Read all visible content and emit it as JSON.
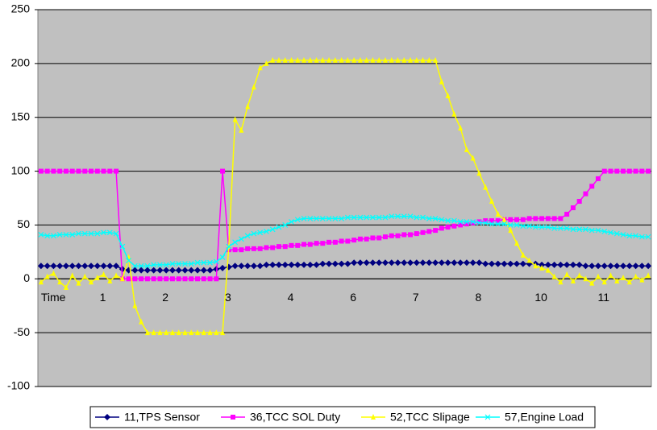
{
  "chart_data": {
    "type": "line",
    "categories": [
      "Time",
      null,
      null,
      null,
      null,
      null,
      null,
      null,
      null,
      null,
      "1",
      null,
      null,
      null,
      null,
      null,
      null,
      null,
      null,
      null,
      "2",
      null,
      null,
      null,
      null,
      null,
      null,
      null,
      null,
      null,
      "3",
      null,
      null,
      null,
      null,
      null,
      null,
      null,
      null,
      null,
      "4",
      null,
      null,
      null,
      null,
      null,
      null,
      null,
      null,
      null,
      "6",
      null,
      null,
      null,
      null,
      null,
      null,
      null,
      null,
      null,
      "7",
      null,
      null,
      null,
      null,
      null,
      null,
      null,
      null,
      null,
      "8",
      null,
      null,
      null,
      null,
      null,
      null,
      null,
      null,
      null,
      "10",
      null,
      null,
      null,
      null,
      null,
      null,
      null,
      null,
      null,
      "11",
      null,
      null,
      null,
      null,
      null,
      null,
      null
    ],
    "ylim": [
      -100,
      250
    ],
    "yticks": [
      -100,
      -50,
      0,
      50,
      100,
      150,
      200,
      250
    ],
    "grid": true,
    "legend": "bottom",
    "series": [
      {
        "name": "11,TPS Sensor",
        "color": "#000080",
        "marker": "diamond",
        "values": [
          12,
          12,
          12,
          12,
          12,
          12,
          12,
          12,
          12,
          12,
          12,
          12,
          12,
          9,
          8,
          8,
          8,
          8,
          8,
          8,
          8,
          8,
          8,
          8,
          8,
          8,
          8,
          8,
          9,
          10,
          11,
          12,
          12,
          12,
          12,
          12,
          13,
          13,
          13,
          13,
          13,
          13,
          13,
          13,
          13,
          14,
          14,
          14,
          14,
          14,
          15,
          15,
          15,
          15,
          15,
          15,
          15,
          15,
          15,
          15,
          15,
          15,
          15,
          15,
          15,
          15,
          15,
          15,
          15,
          15,
          15,
          14,
          14,
          14,
          14,
          14,
          14,
          14,
          14,
          14,
          13,
          13,
          13,
          13,
          13,
          13,
          13,
          12,
          12,
          12,
          12,
          12,
          12,
          12,
          12,
          12,
          12,
          12
        ]
      },
      {
        "name": "36,TCC SOL Duty",
        "color": "#ff00ff",
        "marker": "square",
        "values": [
          100,
          100,
          100,
          100,
          100,
          100,
          100,
          100,
          100,
          100,
          100,
          100,
          100,
          0,
          0,
          0,
          0,
          0,
          0,
          0,
          0,
          0,
          0,
          0,
          0,
          0,
          0,
          0,
          0,
          100,
          27,
          27,
          27,
          28,
          28,
          28,
          29,
          29,
          30,
          30,
          31,
          31,
          32,
          32,
          33,
          33,
          34,
          34,
          35,
          35,
          36,
          37,
          37,
          38,
          38,
          39,
          40,
          40,
          41,
          41,
          42,
          43,
          44,
          45,
          47,
          48,
          49,
          50,
          51,
          52,
          53,
          54,
          54,
          54,
          55,
          55,
          55,
          55,
          56,
          56,
          56,
          56,
          56,
          56,
          60,
          66,
          72,
          79,
          86,
          93,
          100,
          100,
          100,
          100,
          100,
          100,
          100,
          100
        ]
      },
      {
        "name": "52,TCC Slipage",
        "color": "#ffff00",
        "marker": "triangle",
        "values": [
          -3,
          2,
          5,
          -3,
          -8,
          3,
          -4,
          2,
          -3,
          1,
          4,
          -2,
          3,
          0,
          20,
          -25,
          -40,
          -50,
          -50,
          -50,
          -50,
          -50,
          -50,
          -50,
          -50,
          -50,
          -50,
          -50,
          -50,
          -50,
          30,
          148,
          138,
          160,
          178,
          196,
          200,
          203,
          203,
          203,
          203,
          203,
          203,
          203,
          203,
          203,
          203,
          203,
          203,
          203,
          203,
          203,
          203,
          203,
          203,
          203,
          203,
          203,
          203,
          203,
          203,
          203,
          203,
          203,
          183,
          170,
          153,
          140,
          120,
          112,
          98,
          85,
          72,
          60,
          55,
          45,
          33,
          22,
          17,
          12,
          10,
          8,
          2,
          -3,
          4,
          -2,
          3,
          0,
          -4,
          2,
          -3,
          3,
          -2,
          1,
          -3,
          2,
          -1,
          3
        ]
      },
      {
        "name": "57,Engine Load",
        "color": "#00ffff",
        "marker": "cross",
        "values": [
          41,
          40,
          40,
          41,
          41,
          41,
          42,
          42,
          42,
          42,
          43,
          43,
          42,
          30,
          17,
          12,
          12,
          12,
          13,
          13,
          13,
          14,
          14,
          14,
          14,
          15,
          15,
          15,
          16,
          20,
          30,
          34,
          37,
          40,
          42,
          43,
          44,
          46,
          48,
          50,
          53,
          55,
          56,
          56,
          56,
          56,
          56,
          56,
          56,
          57,
          57,
          57,
          57,
          57,
          57,
          57,
          58,
          58,
          58,
          58,
          57,
          57,
          56,
          56,
          55,
          54,
          54,
          53,
          53,
          53,
          52,
          52,
          51,
          51,
          51,
          50,
          50,
          49,
          49,
          48,
          48,
          48,
          47,
          47,
          47,
          46,
          46,
          46,
          45,
          45,
          44,
          43,
          42,
          41,
          40,
          40,
          39,
          39
        ]
      }
    ]
  }
}
